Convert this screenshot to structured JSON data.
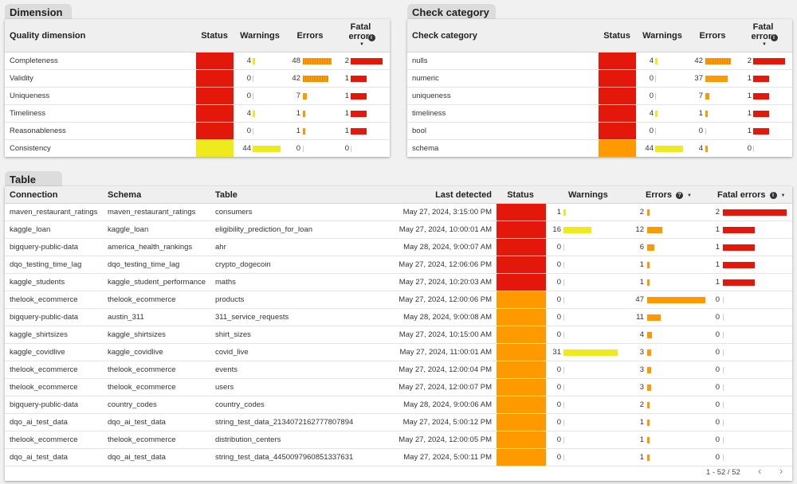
{
  "colors": {
    "fatal": "#e3170a",
    "error": "#ff9900",
    "warning": "#eeea1e",
    "bar_error": "#ff9900",
    "bar_warning": "#eeea1e",
    "bar_fatal": "#e3170a"
  },
  "dimension": {
    "tab": "Dimension",
    "headers": {
      "name": "Quality dimension",
      "status": "Status",
      "warnings": "Warnings",
      "errors": "Errors",
      "fatal": "Fatal errors"
    },
    "rows": [
      {
        "name": "Completeness",
        "status": "fatal",
        "warnings": "4",
        "errors": "48",
        "fatal": "2",
        "wv": 4,
        "ev": 48,
        "fv": 2
      },
      {
        "name": "Validity",
        "status": "fatal",
        "warnings": "0",
        "errors": "42",
        "fatal": "1",
        "wv": 0,
        "ev": 42,
        "fv": 1
      },
      {
        "name": "Uniqueness",
        "status": "fatal",
        "warnings": "0",
        "errors": "7",
        "fatal": "1",
        "wv": 0,
        "ev": 7,
        "fv": 1
      },
      {
        "name": "Timeliness",
        "status": "fatal",
        "warnings": "4",
        "errors": "1",
        "fatal": "1",
        "wv": 4,
        "ev": 1,
        "fv": 1
      },
      {
        "name": "Reasonableness",
        "status": "fatal",
        "warnings": "0",
        "errors": "1",
        "fatal": "1",
        "wv": 0,
        "ev": 1,
        "fv": 1
      },
      {
        "name": "Consistency",
        "status": "warning",
        "warnings": "44",
        "errors": "0",
        "fatal": "0",
        "wv": 44,
        "ev": 0,
        "fv": 0
      }
    ]
  },
  "category": {
    "tab": "Check category",
    "headers": {
      "name": "Check category",
      "status": "Status",
      "warnings": "Warnings",
      "errors": "Errors",
      "fatal": "Fatal errors"
    },
    "rows": [
      {
        "name": "nulls",
        "status": "fatal",
        "warnings": "4",
        "errors": "42",
        "fatal": "2",
        "wv": 4,
        "ev": 42,
        "fv": 2
      },
      {
        "name": "numeric",
        "status": "fatal",
        "warnings": "0",
        "errors": "37",
        "fatal": "1",
        "wv": 0,
        "ev": 37,
        "fv": 1
      },
      {
        "name": "uniqueness",
        "status": "fatal",
        "warnings": "0",
        "errors": "7",
        "fatal": "1",
        "wv": 0,
        "ev": 7,
        "fv": 1
      },
      {
        "name": "timeliness",
        "status": "fatal",
        "warnings": "4",
        "errors": "1",
        "fatal": "1",
        "wv": 4,
        "ev": 1,
        "fv": 1
      },
      {
        "name": "bool",
        "status": "fatal",
        "warnings": "0",
        "errors": "0",
        "fatal": "1",
        "wv": 0,
        "ev": 0,
        "fv": 1
      },
      {
        "name": "schema",
        "status": "error",
        "warnings": "44",
        "errors": "4",
        "fatal": "0",
        "wv": 44,
        "ev": 4,
        "fv": 0
      }
    ]
  },
  "table": {
    "tab": "Table",
    "headers": {
      "connection": "Connection",
      "schema": "Schema",
      "table": "Table",
      "last": "Last detected",
      "status": "Status",
      "warnings": "Warnings",
      "errors": "Errors",
      "fatal": "Fatal errors"
    },
    "rows": [
      {
        "connection": "maven_restaurant_ratings",
        "schema": "maven_restaurant_ratings",
        "table": "consumers",
        "last": "May 27, 2024, 3:15:00 PM",
        "status": "fatal",
        "warnings": "1",
        "errors": "2",
        "fatal": "2",
        "wv": 1,
        "ev": 2,
        "fv": 2
      },
      {
        "connection": "kaggle_loan",
        "schema": "kaggle_loan",
        "table": "eligibility_prediction_for_loan",
        "last": "May 27, 2024, 10:00:01 AM",
        "status": "fatal",
        "warnings": "16",
        "errors": "12",
        "fatal": "1",
        "wv": 16,
        "ev": 12,
        "fv": 1
      },
      {
        "connection": "bigquery-public-data",
        "schema": "america_health_rankings",
        "table": "ahr",
        "last": "May 28, 2024, 9:00:07 AM",
        "status": "fatal",
        "warnings": "0",
        "errors": "6",
        "fatal": "1",
        "wv": 0,
        "ev": 6,
        "fv": 1
      },
      {
        "connection": "dqo_testing_time_lag",
        "schema": "dqo_testing_time_lag",
        "table": "crypto_dogecoin",
        "last": "May 27, 2024, 12:06:06 PM",
        "status": "fatal",
        "warnings": "0",
        "errors": "1",
        "fatal": "1",
        "wv": 0,
        "ev": 1,
        "fv": 1
      },
      {
        "connection": "kaggle_students",
        "schema": "kaggle_student_performance",
        "table": "maths",
        "last": "May 27, 2024, 10:20:03 AM",
        "status": "fatal",
        "warnings": "0",
        "errors": "1",
        "fatal": "1",
        "wv": 0,
        "ev": 1,
        "fv": 1
      },
      {
        "connection": "thelook_ecommerce",
        "schema": "thelook_ecommerce",
        "table": "products",
        "last": "May 27, 2024, 12:00:06 PM",
        "status": "error",
        "warnings": "0",
        "errors": "47",
        "fatal": "0",
        "wv": 0,
        "ev": 47,
        "fv": 0
      },
      {
        "connection": "bigquery-public-data",
        "schema": "austin_311",
        "table": "311_service_requests",
        "last": "May 28, 2024, 9:00:08 AM",
        "status": "error",
        "warnings": "0",
        "errors": "11",
        "fatal": "0",
        "wv": 0,
        "ev": 11,
        "fv": 0
      },
      {
        "connection": "kaggle_shirtsizes",
        "schema": "kaggle_shirtsizes",
        "table": "shirt_sizes",
        "last": "May 27, 2024, 10:15:00 AM",
        "status": "error",
        "warnings": "0",
        "errors": "4",
        "fatal": "0",
        "wv": 0,
        "ev": 4,
        "fv": 0
      },
      {
        "connection": "kaggle_covidlive",
        "schema": "kaggle_covidlive",
        "table": "covid_live",
        "last": "May 27, 2024, 11:00:01 AM",
        "status": "error",
        "warnings": "31",
        "errors": "3",
        "fatal": "0",
        "wv": 31,
        "ev": 3,
        "fv": 0
      },
      {
        "connection": "thelook_ecommerce",
        "schema": "thelook_ecommerce",
        "table": "events",
        "last": "May 27, 2024, 12:00:04 PM",
        "status": "error",
        "warnings": "0",
        "errors": "3",
        "fatal": "0",
        "wv": 0,
        "ev": 3,
        "fv": 0
      },
      {
        "connection": "thelook_ecommerce",
        "schema": "thelook_ecommerce",
        "table": "users",
        "last": "May 27, 2024, 12:00:07 PM",
        "status": "error",
        "warnings": "0",
        "errors": "3",
        "fatal": "0",
        "wv": 0,
        "ev": 3,
        "fv": 0
      },
      {
        "connection": "bigquery-public-data",
        "schema": "country_codes",
        "table": "country_codes",
        "last": "May 28, 2024, 9:00:06 AM",
        "status": "error",
        "warnings": "0",
        "errors": "2",
        "fatal": "0",
        "wv": 0,
        "ev": 2,
        "fv": 0
      },
      {
        "connection": "dqo_ai_test_data",
        "schema": "dqo_ai_test_data",
        "table": "string_test_data_2134072162777807894",
        "last": "May 27, 2024, 5:00:12 PM",
        "status": "error",
        "warnings": "0",
        "errors": "1",
        "fatal": "0",
        "wv": 0,
        "ev": 1,
        "fv": 0
      },
      {
        "connection": "thelook_ecommerce",
        "schema": "thelook_ecommerce",
        "table": "distribution_centers",
        "last": "May 27, 2024, 12:00:05 PM",
        "status": "error",
        "warnings": "0",
        "errors": "1",
        "fatal": "0",
        "wv": 0,
        "ev": 1,
        "fv": 0
      },
      {
        "connection": "dqo_ai_test_data",
        "schema": "dqo_ai_test_data",
        "table": "string_test_data_4450097960851337631",
        "last": "May 27, 2024, 5:00:11 PM",
        "status": "error",
        "warnings": "0",
        "errors": "1",
        "fatal": "0",
        "wv": 0,
        "ev": 1,
        "fv": 0
      }
    ],
    "pagination": "1 - 52 / 52"
  }
}
